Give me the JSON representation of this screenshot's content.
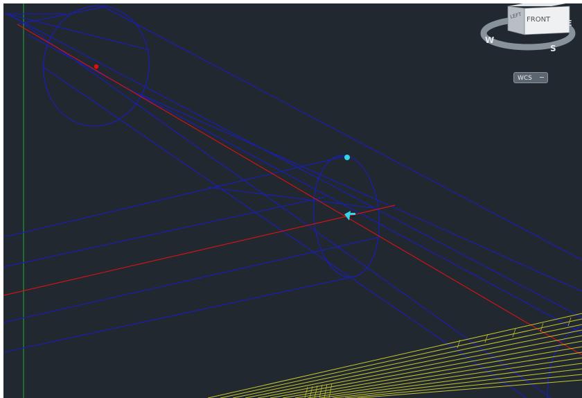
{
  "viewcube": {
    "faces": {
      "front": "FRONT",
      "left": "LEFT"
    },
    "compass": {
      "west": "W",
      "south": "S",
      "east": "E"
    }
  },
  "ucs_menu": {
    "label": "WCS"
  },
  "colors": {
    "background": "#212830",
    "geometry_blue": "#1b1fa8",
    "centerline_red": "#d01414",
    "hatch_yellow": "#c9c92a",
    "axis_green": "#1f9a3a",
    "grip_cyan": "#33d6e8"
  },
  "cursor": {
    "icon": "pick-cursor-icon"
  }
}
